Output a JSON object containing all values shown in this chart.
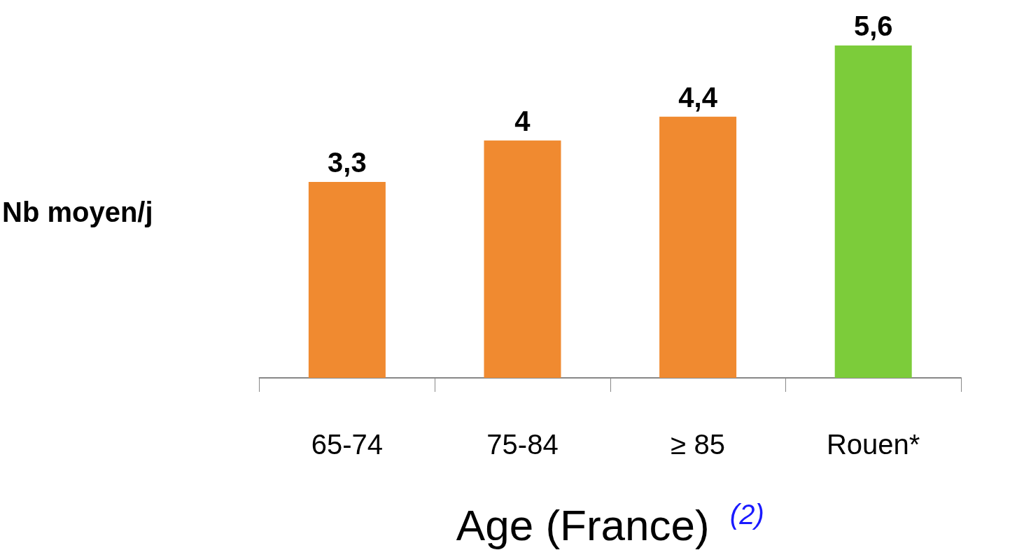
{
  "chart_data": {
    "type": "bar",
    "xlabel": "Age (France) $^{(2)}$",
    "ylabel": "Nb moyen/j",
    "categories": [
      "65-74",
      "75-84",
      "≥ 85",
      "Rouen*"
    ],
    "values": [
      3.3,
      4,
      4.4,
      5.6
    ],
    "colors": [
      "#f08a30",
      "#f08a30",
      "#f08a30",
      "#7ccc3a"
    ],
    "value_labels": [
      "3,3",
      "4",
      "4,4",
      "5,6"
    ]
  }
}
